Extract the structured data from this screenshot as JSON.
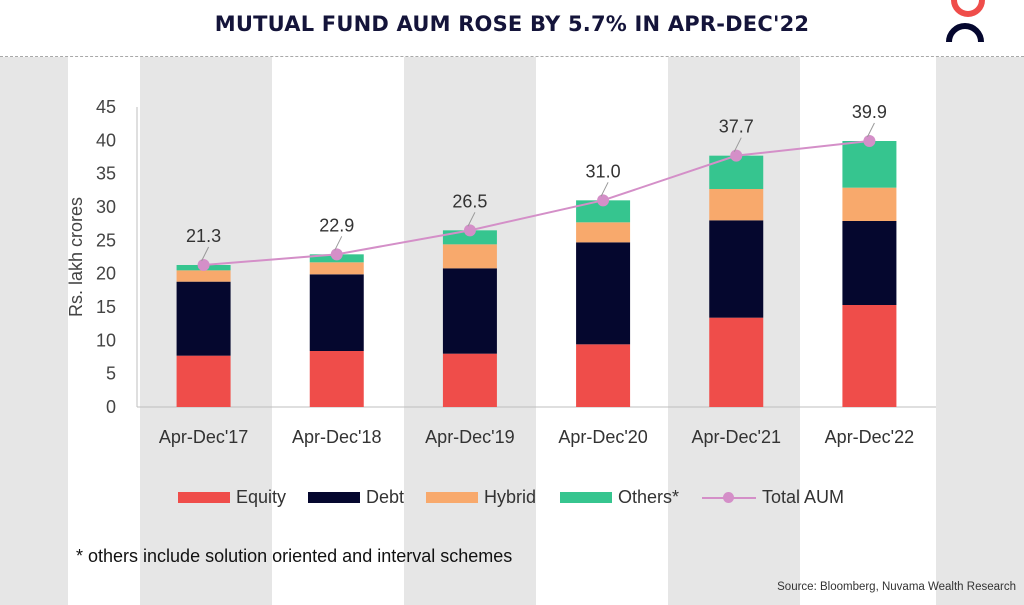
{
  "title": "MUTUAL FUND AUM ROSE BY 5.7% IN APR-DEC'22",
  "colors": {
    "equity": "#ef4d4a",
    "debt": "#05072e",
    "hybrid": "#f8a96c",
    "others": "#36c58f",
    "total": "#d48fc8",
    "stripe": "#e6e6e6",
    "title": "#14143a"
  },
  "chart_data": {
    "type": "bar",
    "stacked": true,
    "categories": [
      "Apr-Dec'17",
      "Apr-Dec'18",
      "Apr-Dec'19",
      "Apr-Dec'20",
      "Apr-Dec'21",
      "Apr-Dec'22"
    ],
    "series": [
      {
        "name": "Equity",
        "key": "equity",
        "values": [
          7.7,
          8.4,
          8.0,
          9.4,
          13.4,
          15.3
        ]
      },
      {
        "name": "Debt",
        "key": "debt",
        "values": [
          11.1,
          11.5,
          12.8,
          15.3,
          14.6,
          12.6
        ]
      },
      {
        "name": "Hybrid",
        "key": "hybrid",
        "values": [
          1.7,
          1.8,
          3.6,
          3.0,
          4.7,
          5.0
        ]
      },
      {
        "name": "Others*",
        "key": "others",
        "values": [
          0.8,
          1.2,
          2.1,
          3.3,
          5.0,
          7.0
        ]
      }
    ],
    "line_series": {
      "name": "Total AUM",
      "key": "total",
      "values": [
        21.3,
        22.9,
        26.5,
        31.0,
        37.7,
        39.9
      ]
    },
    "total_labels": [
      "21.3",
      "22.9",
      "26.5",
      "31.0",
      "37.7",
      "39.9"
    ],
    "ylabel": "Rs. lakh crores",
    "xlabel": "",
    "ylim": [
      0,
      45
    ],
    "yticks": [
      0,
      5,
      10,
      15,
      20,
      25,
      30,
      35,
      40,
      45
    ],
    "legend": "bottom"
  },
  "footnote": "* others  include solution oriented and interval schemes",
  "source": "Source: Bloomberg, Nuvama Wealth Research"
}
